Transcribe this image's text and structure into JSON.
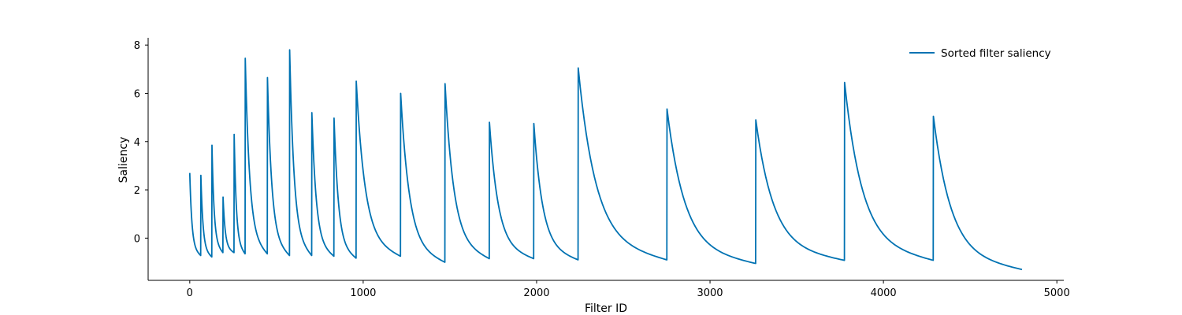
{
  "chart_data": {
    "type": "line",
    "xlabel": "Filter ID",
    "ylabel": "Saliency",
    "xlim": [
      -240,
      5040
    ],
    "ylim": [
      -1.75,
      8.3
    ],
    "xticks": [
      0,
      1000,
      2000,
      3000,
      4000,
      5000
    ],
    "yticks": [
      0,
      2,
      4,
      6,
      8
    ],
    "grid": false,
    "legend_position": "top-right",
    "color": "#0072B2",
    "series": [
      {
        "name": "Sorted filter saliency",
        "segments": [
          {
            "start": 0,
            "end": 64,
            "max": 2.7,
            "min": -0.72
          },
          {
            "start": 64,
            "end": 128,
            "max": 2.6,
            "min": -0.78
          },
          {
            "start": 128,
            "end": 192,
            "max": 3.85,
            "min": -0.6
          },
          {
            "start": 192,
            "end": 256,
            "max": 1.7,
            "min": -0.6
          },
          {
            "start": 256,
            "end": 320,
            "max": 4.3,
            "min": -0.65
          },
          {
            "start": 320,
            "end": 448,
            "max": 7.45,
            "min": -0.65
          },
          {
            "start": 448,
            "end": 576,
            "max": 6.65,
            "min": -0.72
          },
          {
            "start": 576,
            "end": 704,
            "max": 7.8,
            "min": -0.72
          },
          {
            "start": 704,
            "end": 832,
            "max": 5.2,
            "min": -0.75
          },
          {
            "start": 832,
            "end": 960,
            "max": 4.97,
            "min": -0.83
          },
          {
            "start": 960,
            "end": 1216,
            "max": 6.5,
            "min": -0.75
          },
          {
            "start": 1216,
            "end": 1472,
            "max": 6.0,
            "min": -1.0
          },
          {
            "start": 1472,
            "end": 1728,
            "max": 6.4,
            "min": -0.85
          },
          {
            "start": 1728,
            "end": 1984,
            "max": 4.8,
            "min": -0.85
          },
          {
            "start": 1984,
            "end": 2240,
            "max": 4.75,
            "min": -0.9
          },
          {
            "start": 2240,
            "end": 2752,
            "max": 7.05,
            "min": -0.9
          },
          {
            "start": 2752,
            "end": 3264,
            "max": 5.35,
            "min": -1.05
          },
          {
            "start": 3264,
            "end": 3776,
            "max": 4.9,
            "min": -0.92
          },
          {
            "start": 3776,
            "end": 4288,
            "max": 6.45,
            "min": -0.92
          },
          {
            "start": 4288,
            "end": 4800,
            "max": 5.05,
            "min": -1.3
          }
        ]
      }
    ]
  }
}
